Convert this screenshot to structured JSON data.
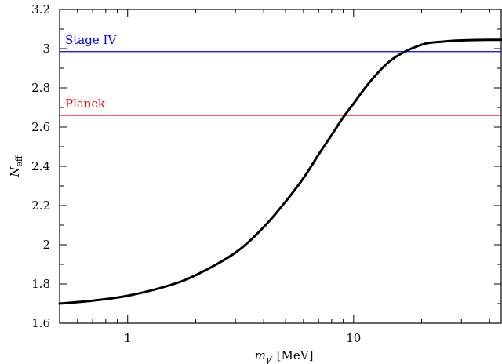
{
  "chart_data": {
    "type": "line",
    "xscale": "log",
    "xlim": [
      0.5,
      45
    ],
    "ylim": [
      1.6,
      3.2
    ],
    "x_ticks": [
      1,
      10
    ],
    "y_ticks": [
      1.6,
      1.8,
      2,
      2.2,
      2.4,
      2.6,
      2.8,
      3,
      3.2
    ],
    "xlabel": {
      "symbol": "m",
      "subscript": "γ′",
      "unit": "[MeV]"
    },
    "ylabel": {
      "symbol": "N",
      "subscript": "eff"
    },
    "grid": false,
    "reference_lines": [
      {
        "label": "Stage IV",
        "y": 2.985,
        "color": "#0000ff"
      },
      {
        "label": "Planck",
        "y": 2.66,
        "color": "#ff0000"
      }
    ],
    "series": [
      {
        "color": "#000000",
        "x": [
          0.5,
          0.7,
          1,
          1.5,
          2,
          3,
          4,
          5,
          6,
          7,
          8,
          9,
          10,
          12,
          15,
          20,
          25,
          30,
          40,
          45
        ],
        "y": [
          1.7,
          1.715,
          1.74,
          1.79,
          1.845,
          1.96,
          2.09,
          2.22,
          2.34,
          2.46,
          2.56,
          2.65,
          2.72,
          2.84,
          2.95,
          3.02,
          3.036,
          3.042,
          3.045,
          3.045
        ]
      }
    ]
  }
}
